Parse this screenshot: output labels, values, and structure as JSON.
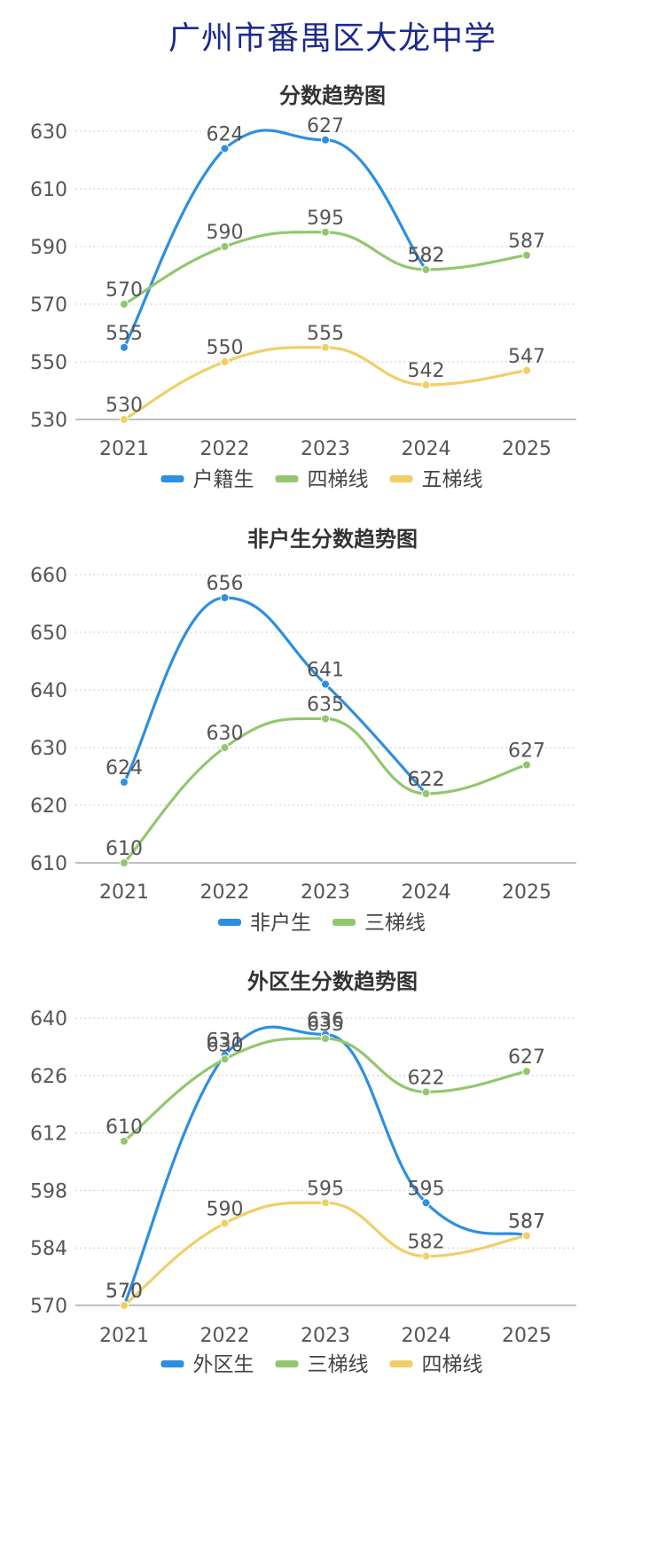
{
  "page_title": "广州市番禺区大龙中学",
  "chart_data": [
    {
      "type": "line",
      "title": "分数趋势图",
      "categories": [
        "2021",
        "2022",
        "2023",
        "2024",
        "2025"
      ],
      "yticks": [
        530,
        550,
        570,
        590,
        610,
        630
      ],
      "ylim": [
        530,
        630
      ],
      "grid": true,
      "legend": "bottom",
      "series": [
        {
          "name": "户籍生",
          "color": "#2d8fe0",
          "values": [
            555,
            624,
            627,
            582,
            null
          ]
        },
        {
          "name": "四梯线",
          "color": "#93c76f",
          "values": [
            570,
            590,
            595,
            582,
            587
          ]
        },
        {
          "name": "五梯线",
          "color": "#f0cf67",
          "values": [
            530,
            550,
            555,
            542,
            547
          ]
        }
      ]
    },
    {
      "type": "line",
      "title": "非户生分数趋势图",
      "categories": [
        "2021",
        "2022",
        "2023",
        "2024",
        "2025"
      ],
      "yticks": [
        610,
        620,
        630,
        640,
        650,
        660
      ],
      "ylim": [
        610,
        660
      ],
      "grid": true,
      "legend": "bottom",
      "series": [
        {
          "name": "非户生",
          "color": "#2d8fe0",
          "values": [
            624,
            656,
            641,
            622,
            null
          ]
        },
        {
          "name": "三梯线",
          "color": "#93c76f",
          "values": [
            610,
            630,
            635,
            622,
            627
          ]
        }
      ]
    },
    {
      "type": "line",
      "title": "外区生分数趋势图",
      "categories": [
        "2021",
        "2022",
        "2023",
        "2024",
        "2025"
      ],
      "yticks": [
        570,
        584,
        598,
        612,
        626,
        640
      ],
      "ylim": [
        570,
        640
      ],
      "grid": true,
      "legend": "bottom",
      "series": [
        {
          "name": "外区生",
          "color": "#2d8fe0",
          "values": [
            570,
            631,
            636,
            595,
            587
          ]
        },
        {
          "name": "三梯线",
          "color": "#93c76f",
          "values": [
            610,
            630,
            635,
            622,
            627
          ]
        },
        {
          "name": "四梯线",
          "color": "#f0cf67",
          "values": [
            570,
            590,
            595,
            582,
            587
          ]
        }
      ]
    }
  ]
}
